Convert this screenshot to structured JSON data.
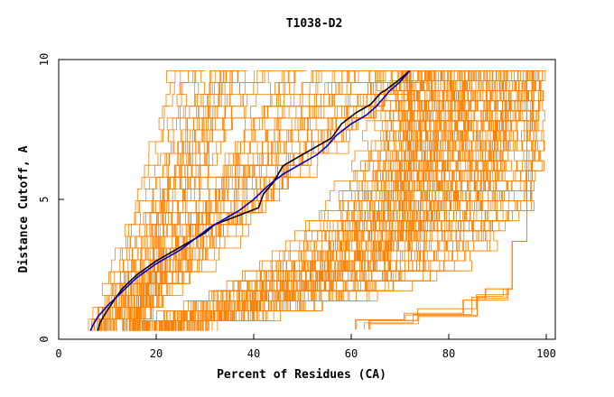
{
  "chart_data": {
    "type": "line",
    "title": "T1038-D2",
    "xlabel": "Percent of Residues (CA)",
    "ylabel": "Distance Cutoff, A",
    "xlim": [
      0,
      100
    ],
    "ylim": [
      0,
      10
    ],
    "x_ticks": [
      "0",
      "20",
      "40",
      "60",
      "80",
      "100"
    ],
    "y_ticks": [
      "0",
      "5",
      "10"
    ],
    "grid": false,
    "colors": {
      "models": "#ff8000",
      "highlight_black": "#000000",
      "highlight_blue": "#0000cc"
    },
    "series": [
      {
        "color": "#000000",
        "x": [
          8.0,
          8.5,
          9.5,
          11.0,
          13.0,
          16.0,
          20.0,
          24.0,
          28.0,
          30.0,
          32.0,
          35.0,
          38.0,
          41.0,
          42.0,
          44.0,
          46.0,
          48.0,
          52.0,
          56.0,
          58.0,
          61.0,
          64.0,
          66.0,
          67.0,
          70.0,
          72.0
        ],
        "y": [
          0.3,
          0.6,
          0.9,
          1.3,
          1.8,
          2.3,
          2.8,
          3.2,
          3.6,
          3.8,
          4.1,
          4.3,
          4.5,
          4.7,
          5.2,
          5.6,
          6.2,
          6.4,
          6.8,
          7.2,
          7.7,
          8.1,
          8.4,
          8.8,
          8.9,
          9.3,
          9.6
        ]
      },
      {
        "color": "#0000cc",
        "x": [
          6.5,
          7.0,
          8.0,
          10.0,
          13.0,
          16.0,
          20.0,
          25.0,
          28.0,
          31.0,
          34.0,
          37.0,
          40.0,
          43.0,
          46.0,
          50.0,
          53.0,
          55.0,
          57.0,
          60.0,
          63.0,
          65.0,
          66.5,
          68.0,
          70.0,
          72.0
        ],
        "y": [
          0.3,
          0.5,
          0.8,
          1.2,
          1.7,
          2.2,
          2.7,
          3.2,
          3.6,
          4.0,
          4.3,
          4.6,
          5.0,
          5.5,
          5.9,
          6.3,
          6.6,
          6.9,
          7.3,
          7.7,
          8.0,
          8.3,
          8.6,
          8.9,
          9.2,
          9.6
        ]
      }
    ]
  }
}
